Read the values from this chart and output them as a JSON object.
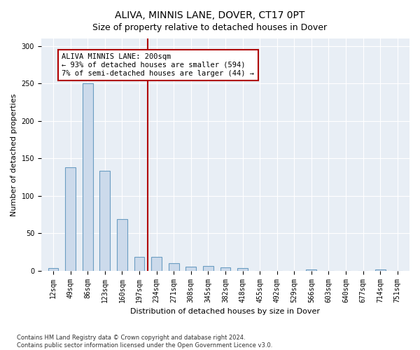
{
  "title": "ALIVA, MINNIS LANE, DOVER, CT17 0PT",
  "subtitle": "Size of property relative to detached houses in Dover",
  "xlabel": "Distribution of detached houses by size in Dover",
  "ylabel": "Number of detached properties",
  "footnote1": "Contains HM Land Registry data © Crown copyright and database right 2024.",
  "footnote2": "Contains public sector information licensed under the Open Government Licence v3.0.",
  "categories": [
    "12sqm",
    "49sqm",
    "86sqm",
    "123sqm",
    "160sqm",
    "197sqm",
    "234sqm",
    "271sqm",
    "308sqm",
    "345sqm",
    "382sqm",
    "418sqm",
    "455sqm",
    "492sqm",
    "529sqm",
    "566sqm",
    "603sqm",
    "640sqm",
    "677sqm",
    "714sqm",
    "751sqm"
  ],
  "values": [
    3,
    138,
    250,
    133,
    69,
    18,
    18,
    10,
    5,
    6,
    4,
    3,
    0,
    0,
    0,
    2,
    0,
    0,
    0,
    2,
    0
  ],
  "bar_color": "#ccdaeb",
  "bar_edge_color": "#6b9dc2",
  "vline_color": "#b00000",
  "vline_x_index": 5,
  "annotation_text": "ALIVA MINNIS LANE: 200sqm\n← 93% of detached houses are smaller (594)\n7% of semi-detached houses are larger (44) →",
  "annotation_box_edgecolor": "#b00000",
  "ylim": [
    0,
    310
  ],
  "yticks": [
    0,
    50,
    100,
    150,
    200,
    250,
    300
  ],
  "plot_bg_color": "#e8eef5",
  "grid_color": "#ffffff",
  "title_fontsize": 10,
  "subtitle_fontsize": 9,
  "xlabel_fontsize": 8,
  "ylabel_fontsize": 8,
  "tick_fontsize": 7
}
